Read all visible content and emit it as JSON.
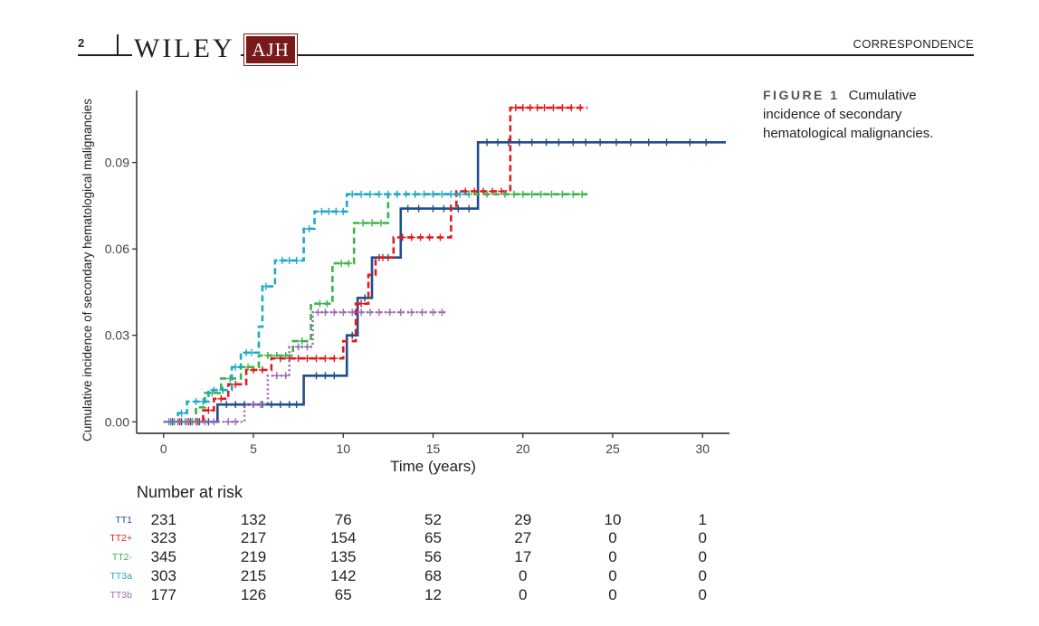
{
  "header": {
    "page_number": "2",
    "publisher": "WILEY",
    "journal": "AJH",
    "section": "CORRESPONDENCE"
  },
  "caption": {
    "label": "FIGURE 1",
    "text": "Cumulative incidence of secondary hematological malignancies."
  },
  "colors": {
    "TT1": "#1f4e8c",
    "TT2+": "#e31a1c",
    "TT2-": "#3cb44b",
    "TT3a": "#1fa9c9",
    "TT3b": "#9b6bb0"
  },
  "chart_data": {
    "type": "line",
    "title": "",
    "xlabel": "Time (years)",
    "ylabel": "Cumulative incidence of secondary hematological malignancies",
    "xlim": [
      -1.5,
      31.5
    ],
    "ylim": [
      -0.004,
      0.115
    ],
    "xticks": [
      0,
      5,
      10,
      15,
      20,
      25,
      30
    ],
    "yticks": [
      0.0,
      0.03,
      0.06,
      0.09
    ],
    "ytick_labels": [
      "0.00",
      "0.03",
      "0.06",
      "0.09"
    ],
    "series": [
      {
        "name": "TT1",
        "dash": "solid",
        "steps": [
          [
            0,
            0.0
          ],
          [
            3.0,
            0.006
          ],
          [
            7.8,
            0.016
          ],
          [
            10.2,
            0.03
          ],
          [
            10.8,
            0.043
          ],
          [
            11.6,
            0.057
          ],
          [
            13.2,
            0.074
          ],
          [
            17.5,
            0.097
          ],
          [
            31.3,
            0.097
          ]
        ],
        "censors": [
          0.5,
          1.0,
          1.5,
          2.0,
          2.5,
          3.5,
          4.0,
          4.5,
          5.0,
          5.5,
          6.0,
          6.5,
          7.0,
          7.4,
          8.5,
          9.0,
          9.5,
          10.5,
          11.2,
          12.0,
          12.5,
          13.6,
          14.2,
          15.0,
          15.6,
          16.4,
          17.0,
          18.0,
          18.6,
          19.2,
          19.8,
          20.5,
          21.3,
          22.0,
          22.8,
          23.5,
          24.3,
          25.2,
          26.0,
          27.0,
          28.0,
          29.3,
          30.2
        ]
      },
      {
        "name": "TT2+",
        "dash": "dashed",
        "steps": [
          [
            0,
            0.0
          ],
          [
            2.2,
            0.004
          ],
          [
            2.8,
            0.008
          ],
          [
            3.6,
            0.013
          ],
          [
            4.6,
            0.018
          ],
          [
            6.0,
            0.022
          ],
          [
            10.0,
            0.028
          ],
          [
            10.7,
            0.041
          ],
          [
            11.4,
            0.051
          ],
          [
            11.8,
            0.057
          ],
          [
            12.8,
            0.064
          ],
          [
            16.0,
            0.075
          ],
          [
            16.3,
            0.08
          ],
          [
            19.3,
            0.109
          ],
          [
            23.6,
            0.109
          ]
        ],
        "censors": [
          0.4,
          0.9,
          1.4,
          1.9,
          2.5,
          3.2,
          4.0,
          5.0,
          5.5,
          6.5,
          7.0,
          7.5,
          8.0,
          8.5,
          9.0,
          9.5,
          11.0,
          12.2,
          13.3,
          13.8,
          14.3,
          14.8,
          15.4,
          16.8,
          17.3,
          17.8,
          18.3,
          18.8,
          19.6,
          20.0,
          20.4,
          20.8,
          21.2,
          21.7,
          22.2,
          22.7,
          23.2
        ]
      },
      {
        "name": "TT2-",
        "dash": "dashed",
        "steps": [
          [
            0,
            0.0
          ],
          [
            1.8,
            0.005
          ],
          [
            2.3,
            0.01
          ],
          [
            3.2,
            0.015
          ],
          [
            4.3,
            0.019
          ],
          [
            5.3,
            0.023
          ],
          [
            7.2,
            0.028
          ],
          [
            8.2,
            0.041
          ],
          [
            9.4,
            0.055
          ],
          [
            10.6,
            0.069
          ],
          [
            12.5,
            0.079
          ],
          [
            23.6,
            0.079
          ]
        ],
        "censors": [
          0.6,
          1.2,
          1.6,
          2.7,
          3.7,
          4.7,
          5.8,
          6.3,
          6.8,
          7.7,
          8.7,
          9.1,
          9.9,
          10.3,
          11.1,
          11.6,
          12.1,
          13.0,
          14.0,
          15.0,
          16.0,
          17.0,
          18.0,
          19.0,
          19.5,
          20.0,
          20.5,
          21.0,
          21.6,
          22.2,
          22.8,
          23.3
        ]
      },
      {
        "name": "TT3a",
        "dash": "dashed",
        "steps": [
          [
            0,
            0.0
          ],
          [
            0.8,
            0.003
          ],
          [
            1.3,
            0.007
          ],
          [
            2.5,
            0.011
          ],
          [
            3.8,
            0.019
          ],
          [
            4.3,
            0.024
          ],
          [
            5.3,
            0.033
          ],
          [
            5.5,
            0.047
          ],
          [
            6.2,
            0.056
          ],
          [
            7.8,
            0.067
          ],
          [
            8.4,
            0.073
          ],
          [
            10.2,
            0.079
          ],
          [
            17.0,
            0.079
          ]
        ],
        "censors": [
          0.4,
          1.0,
          1.8,
          2.2,
          2.8,
          3.3,
          4.0,
          4.6,
          4.9,
          5.7,
          6.6,
          7.0,
          7.4,
          8.1,
          8.8,
          9.2,
          9.6,
          10.0,
          10.5,
          11.0,
          11.5,
          12.0,
          12.5,
          13.0,
          13.5,
          14.0,
          14.5,
          15.0,
          15.5,
          16.0,
          16.5
        ]
      },
      {
        "name": "TT3b",
        "dash": "dotted",
        "steps": [
          [
            0,
            0.0
          ],
          [
            4.5,
            0.006
          ],
          [
            5.8,
            0.016
          ],
          [
            7.0,
            0.026
          ],
          [
            8.3,
            0.038
          ],
          [
            15.8,
            0.038
          ]
        ],
        "censors": [
          0.3,
          0.8,
          1.3,
          1.8,
          2.3,
          2.8,
          3.6,
          4.0,
          5.0,
          5.4,
          6.3,
          6.8,
          7.5,
          8.0,
          8.6,
          9.0,
          9.5,
          10.0,
          10.5,
          11.0,
          11.5,
          12.0,
          12.6,
          13.2,
          13.8,
          14.4,
          15.0,
          15.5
        ]
      }
    ]
  },
  "risk_table": {
    "title": "Number at risk",
    "times": [
      0,
      5,
      10,
      15,
      20,
      25,
      30
    ],
    "rows": [
      {
        "label": "TT1",
        "values": [
          "231",
          "132",
          "76",
          "52",
          "29",
          "10",
          "1"
        ]
      },
      {
        "label": "TT2+",
        "values": [
          "323",
          "217",
          "154",
          "65",
          "27",
          "0",
          "0"
        ]
      },
      {
        "label": "TT2-",
        "values": [
          "345",
          "219",
          "135",
          "56",
          "17",
          "0",
          "0"
        ]
      },
      {
        "label": "TT3a",
        "values": [
          "303",
          "215",
          "142",
          "68",
          "0",
          "0",
          "0"
        ]
      },
      {
        "label": "TT3b",
        "values": [
          "177",
          "126",
          "65",
          "12",
          "0",
          "0",
          "0"
        ]
      }
    ]
  }
}
